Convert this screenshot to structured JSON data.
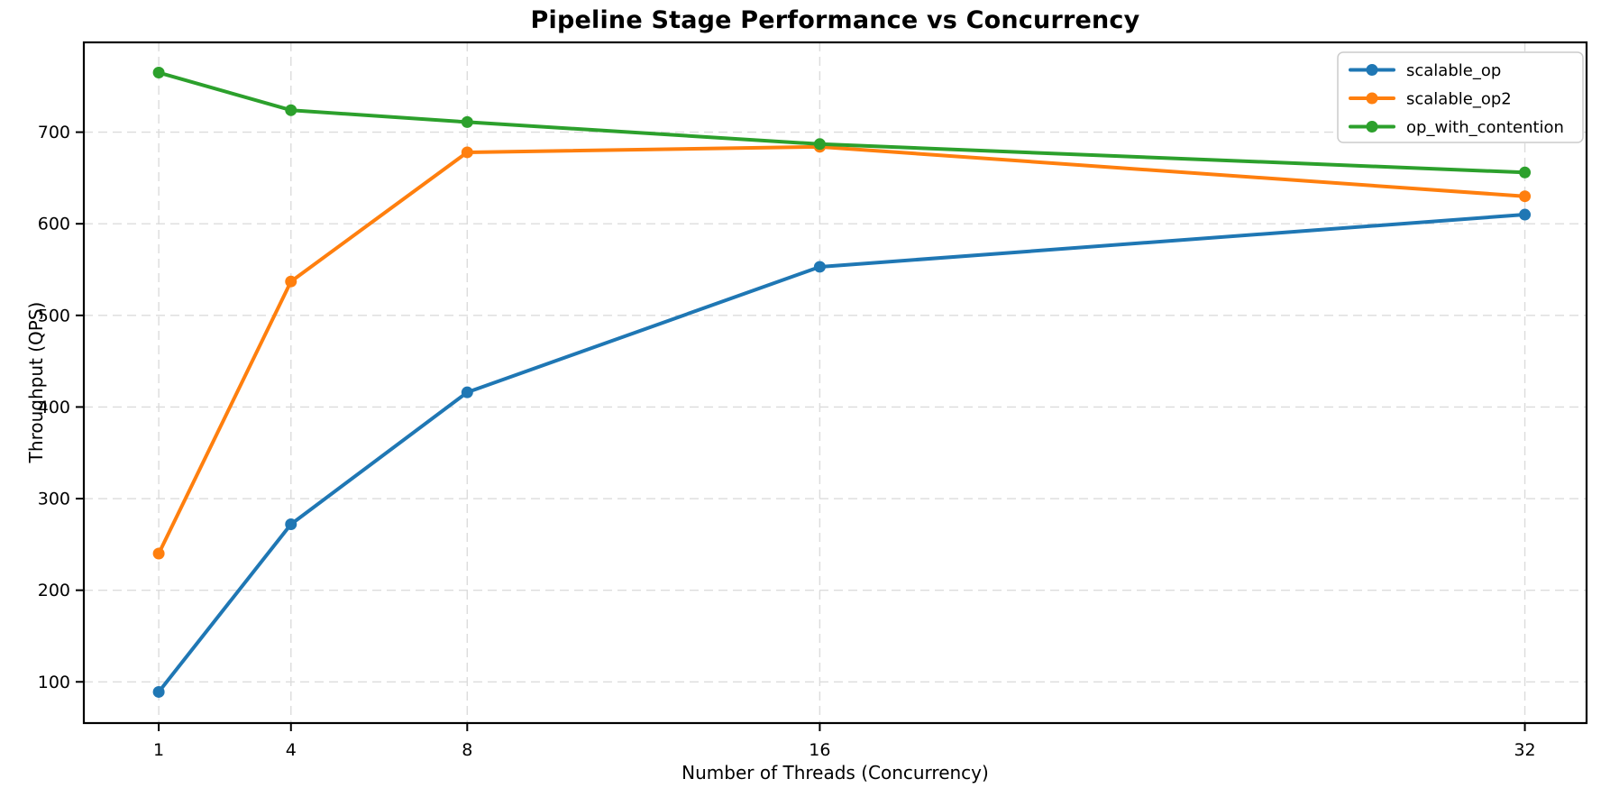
{
  "chart_data": {
    "type": "line",
    "title": "Pipeline Stage Performance vs Concurrency",
    "xlabel": "Number of Threads (Concurrency)",
    "ylabel": "Throughput (QPS)",
    "x_scale": "linear",
    "x": [
      1,
      4,
      8,
      16,
      32
    ],
    "x_ticks": [
      "1",
      "4",
      "8",
      "16",
      "32"
    ],
    "y_ticks": [
      100,
      200,
      300,
      400,
      500,
      600,
      700
    ],
    "xlim": [
      -0.7,
      33.4
    ],
    "ylim": [
      55,
      798
    ],
    "grid": true,
    "grid_style": "dashed",
    "legend_position": "upper right",
    "series": [
      {
        "name": "scalable_op",
        "color": "#1f77b4",
        "values": [
          89,
          272,
          416,
          553,
          610
        ]
      },
      {
        "name": "scalable_op2",
        "color": "#ff7f0e",
        "values": [
          240,
          537,
          678,
          684,
          630
        ]
      },
      {
        "name": "op_with_contention",
        "color": "#2ca02c",
        "values": [
          765,
          724,
          711,
          687,
          656
        ]
      }
    ],
    "colors": {
      "grid": "#dcdcdc",
      "frame": "#000000",
      "tick_text": "#000000",
      "legend_border": "#cccccc",
      "legend_bg": "#ffffff"
    }
  }
}
